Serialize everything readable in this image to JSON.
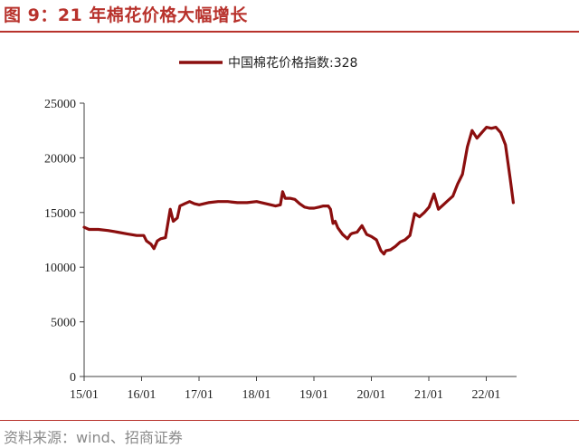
{
  "header": {
    "title": "图 9：21 年棉花价格大幅增长"
  },
  "footer": {
    "source": "资料来源：wind、招商证券"
  },
  "colors": {
    "accent": "#b8322c",
    "series": "#8b0e0e",
    "axis": "#404040"
  },
  "chart_data": {
    "type": "line",
    "title": "",
    "xlabel": "",
    "ylabel": "",
    "ylim": [
      0,
      25000
    ],
    "yticks": [
      0,
      5000,
      10000,
      15000,
      20000,
      25000
    ],
    "xticks": [
      "15/01",
      "16/01",
      "17/01",
      "18/01",
      "19/01",
      "20/01",
      "21/01",
      "22/01"
    ],
    "grid": false,
    "legend_position": "top-center",
    "series": [
      {
        "name": "中国棉花价格指数:328",
        "points": [
          [
            "2015-01-01",
            13650
          ],
          [
            "2015-02-01",
            13450
          ],
          [
            "2015-04-01",
            13450
          ],
          [
            "2015-06-01",
            13350
          ],
          [
            "2015-08-01",
            13200
          ],
          [
            "2015-10-01",
            13050
          ],
          [
            "2015-12-01",
            12900
          ],
          [
            "2016-01-15",
            12900
          ],
          [
            "2016-02-01",
            12400
          ],
          [
            "2016-03-01",
            12100
          ],
          [
            "2016-03-20",
            11700
          ],
          [
            "2016-04-10",
            12400
          ],
          [
            "2016-05-01",
            12600
          ],
          [
            "2016-06-01",
            12700
          ],
          [
            "2016-07-01",
            15300
          ],
          [
            "2016-07-20",
            14200
          ],
          [
            "2016-08-15",
            14500
          ],
          [
            "2016-09-01",
            15600
          ],
          [
            "2016-10-01",
            15800
          ],
          [
            "2016-11-01",
            16000
          ],
          [
            "2016-12-01",
            15800
          ],
          [
            "2017-01-01",
            15700
          ],
          [
            "2017-03-01",
            15900
          ],
          [
            "2017-05-01",
            16000
          ],
          [
            "2017-07-01",
            16000
          ],
          [
            "2017-09-01",
            15900
          ],
          [
            "2017-11-01",
            15900
          ],
          [
            "2018-01-01",
            16000
          ],
          [
            "2018-02-01",
            15900
          ],
          [
            "2018-04-01",
            15700
          ],
          [
            "2018-05-01",
            15600
          ],
          [
            "2018-06-01",
            15700
          ],
          [
            "2018-06-15",
            16900
          ],
          [
            "2018-07-01",
            16300
          ],
          [
            "2018-08-01",
            16300
          ],
          [
            "2018-09-01",
            16200
          ],
          [
            "2018-10-01",
            15800
          ],
          [
            "2018-11-01",
            15500
          ],
          [
            "2018-12-01",
            15400
          ],
          [
            "2019-01-01",
            15400
          ],
          [
            "2019-02-01",
            15500
          ],
          [
            "2019-03-01",
            15600
          ],
          [
            "2019-04-01",
            15600
          ],
          [
            "2019-04-15",
            15300
          ],
          [
            "2019-05-01",
            14000
          ],
          [
            "2019-05-15",
            14200
          ],
          [
            "2019-06-01",
            13600
          ],
          [
            "2019-07-01",
            13000
          ],
          [
            "2019-08-01",
            12600
          ],
          [
            "2019-08-20",
            13000
          ],
          [
            "2019-09-01",
            13100
          ],
          [
            "2019-10-01",
            13200
          ],
          [
            "2019-11-01",
            13800
          ],
          [
            "2019-12-01",
            13000
          ],
          [
            "2020-01-01",
            12800
          ],
          [
            "2020-02-01",
            12500
          ],
          [
            "2020-03-01",
            11500
          ],
          [
            "2020-03-20",
            11200
          ],
          [
            "2020-04-01",
            11500
          ],
          [
            "2020-05-01",
            11600
          ],
          [
            "2020-06-01",
            11900
          ],
          [
            "2020-07-01",
            12300
          ],
          [
            "2020-08-01",
            12500
          ],
          [
            "2020-09-01",
            12900
          ],
          [
            "2020-10-01",
            14900
          ],
          [
            "2020-11-01",
            14600
          ],
          [
            "2020-12-01",
            15000
          ],
          [
            "2021-01-01",
            15500
          ],
          [
            "2021-02-01",
            16700
          ],
          [
            "2021-03-01",
            15300
          ],
          [
            "2021-04-01",
            15700
          ],
          [
            "2021-05-01",
            16100
          ],
          [
            "2021-06-01",
            16500
          ],
          [
            "2021-07-01",
            17600
          ],
          [
            "2021-08-01",
            18500
          ],
          [
            "2021-09-01",
            21000
          ],
          [
            "2021-10-01",
            22500
          ],
          [
            "2021-11-01",
            21800
          ],
          [
            "2021-12-01",
            22300
          ],
          [
            "2022-01-01",
            22800
          ],
          [
            "2022-02-01",
            22700
          ],
          [
            "2022-03-01",
            22800
          ],
          [
            "2022-04-01",
            22300
          ],
          [
            "2022-05-01",
            21200
          ],
          [
            "2022-06-01",
            18000
          ],
          [
            "2022-06-20",
            15900
          ]
        ]
      }
    ]
  }
}
